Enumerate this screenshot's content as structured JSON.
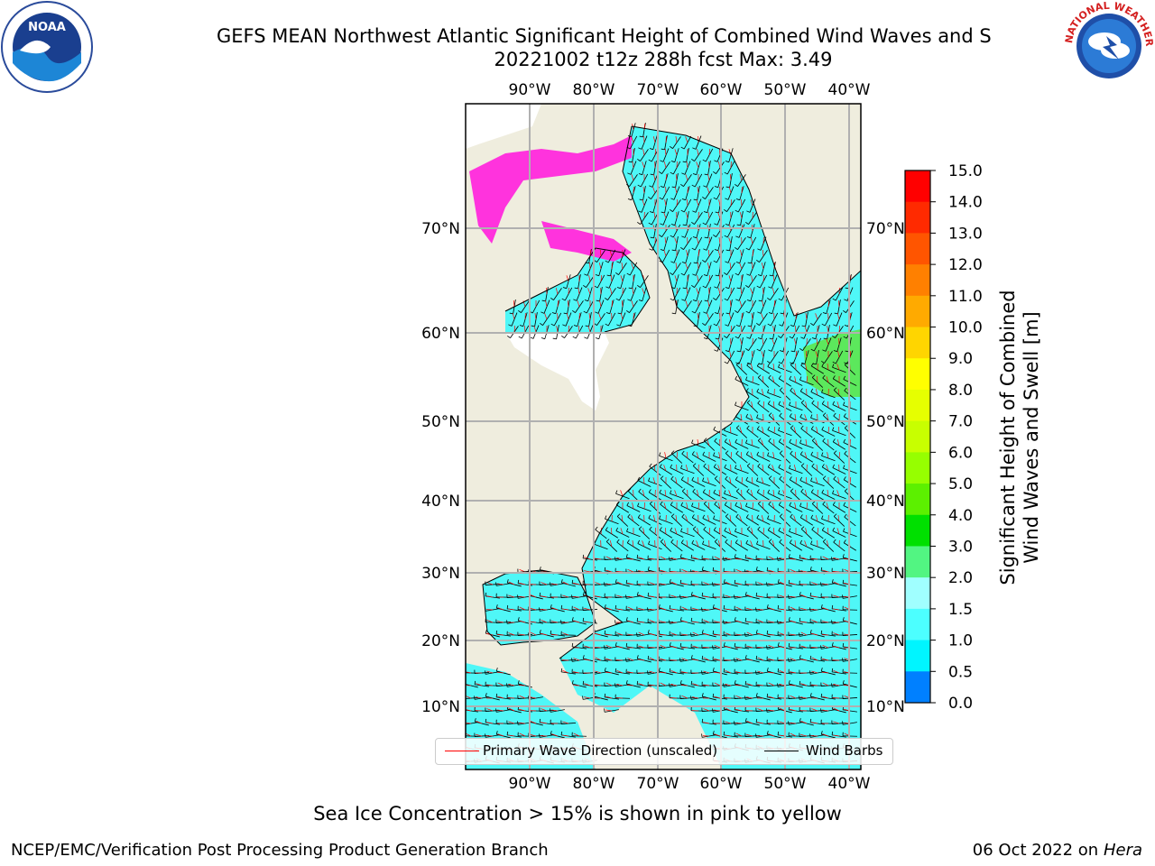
{
  "header": {
    "title_line1": "GEFS MEAN Northwest Atlantic Significant Height of Combined Wind Waves and S",
    "title_line2": "20221002 t12z 288h fcst   Max: 3.49"
  },
  "logos": {
    "left_name": "noaa-logo",
    "left_text": "NOAA",
    "right_name": "nws-logo",
    "right_text": "NATIONAL WEATHER SERVICE"
  },
  "map": {
    "top_lon_labels": [
      "90°W",
      "80°W",
      "70°W",
      "60°W",
      "50°W",
      "40°W"
    ],
    "bottom_lon_labels": [
      "90°W",
      "80°W",
      "70°W",
      "60°W",
      "50°W",
      "40°W"
    ],
    "left_lat_labels": [
      "70°N",
      "60°N",
      "50°N",
      "40°N",
      "30°N",
      "20°N",
      "10°N"
    ],
    "right_lat_labels": [
      "70°N",
      "60°N",
      "50°N",
      "40°N",
      "30°N",
      "20°N",
      "10°N"
    ],
    "land_color": "#efedde",
    "ocean_color": "#4ff7f7",
    "ice_color": "#ff33dd",
    "max_wave_height": 3.49
  },
  "legend": {
    "primary_wave_label": "Primary Wave Direction (unscaled)",
    "wind_barbs_label": "Wind Barbs",
    "primary_wave_color": "#ff0000",
    "wind_barbs_color": "#000000"
  },
  "colorbar": {
    "label_line1": "Significant Height of Combined",
    "label_line2": "Wind Waves and Swell [m]",
    "ticks": [
      "15.0",
      "14.0",
      "13.0",
      "12.0",
      "11.0",
      "10.0",
      "9.0",
      "8.0",
      "7.0",
      "6.0",
      "5.0",
      "4.0",
      "3.0",
      "2.0",
      "1.5",
      "1.0",
      "0.5",
      "0.0"
    ],
    "colors": [
      "#ff0000",
      "#ff2a00",
      "#ff5500",
      "#ff8000",
      "#ffaa00",
      "#ffd500",
      "#ffff00",
      "#e6ff00",
      "#c8ff00",
      "#96ff00",
      "#5cf000",
      "#00e000",
      "#52f582",
      "#a0ffff",
      "#4cffff",
      "#00f5ff",
      "#0080ff",
      "#0000ff"
    ]
  },
  "footnote": "Sea Ice Concentration > 15% is shown in pink to yellow",
  "footer": {
    "left": "NCEP/EMC/Verification Post Processing Product Generation Branch",
    "right_date": "06 Oct 2022 on ",
    "right_host": "Hera"
  }
}
